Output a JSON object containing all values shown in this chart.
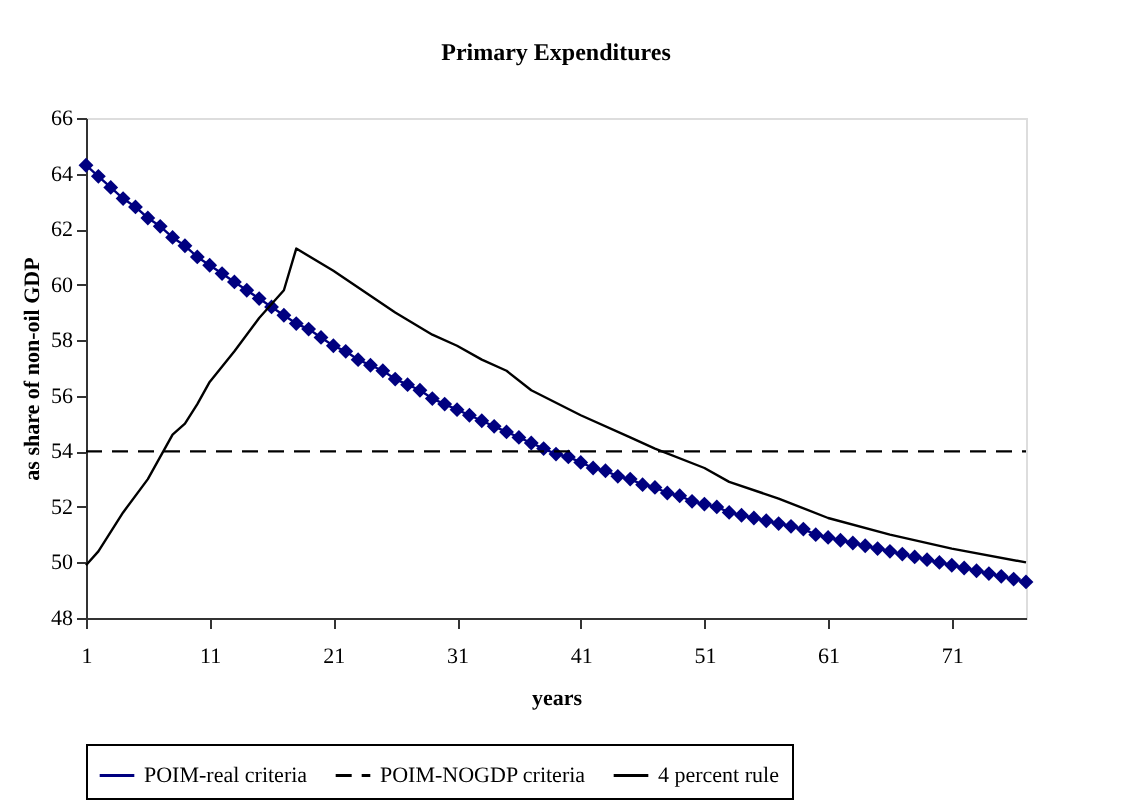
{
  "chart_data": {
    "type": "line",
    "title": "Primary Expenditures",
    "xlabel": "years",
    "ylabel": "as share of non-oil GDP",
    "xlim": [
      1,
      77
    ],
    "xticks": [
      1,
      11,
      21,
      31,
      41,
      51,
      61,
      71
    ],
    "ylim": [
      48,
      66
    ],
    "yticks": [
      48,
      50,
      52,
      54,
      56,
      58,
      60,
      62,
      64,
      66
    ],
    "grid": false,
    "legend": "bottom",
    "series": [
      {
        "name": "POIM-real criteria",
        "color": "#000080",
        "marker": "diamond",
        "line_style": "solid",
        "x": [
          1,
          2,
          3,
          4,
          5,
          6,
          7,
          8,
          9,
          10,
          11,
          12,
          13,
          14,
          15,
          16,
          17,
          18,
          19,
          20,
          21,
          22,
          23,
          24,
          25,
          26,
          27,
          28,
          29,
          30,
          31,
          32,
          33,
          34,
          35,
          36,
          37,
          38,
          39,
          40,
          41,
          42,
          43,
          44,
          45,
          46,
          47,
          48,
          49,
          50,
          51,
          52,
          53,
          54,
          55,
          56,
          57,
          58,
          59,
          60,
          61,
          62,
          63,
          64,
          65,
          66,
          67,
          68,
          69,
          70,
          71,
          72,
          73,
          74,
          75,
          76,
          77
        ],
        "values": [
          64.3,
          63.9,
          63.5,
          63.1,
          62.8,
          62.4,
          62.1,
          61.7,
          61.4,
          61.0,
          60.7,
          60.4,
          60.1,
          59.8,
          59.5,
          59.2,
          58.9,
          58.6,
          58.4,
          58.1,
          57.8,
          57.6,
          57.3,
          57.1,
          56.9,
          56.6,
          56.4,
          56.2,
          55.9,
          55.7,
          55.5,
          55.3,
          55.1,
          54.9,
          54.7,
          54.5,
          54.3,
          54.1,
          53.9,
          53.8,
          53.6,
          53.4,
          53.3,
          53.1,
          53.0,
          52.8,
          52.7,
          52.5,
          52.4,
          52.2,
          52.1,
          52.0,
          51.8,
          51.7,
          51.6,
          51.5,
          51.4,
          51.3,
          51.2,
          51.0,
          50.9,
          50.8,
          50.7,
          50.6,
          50.5,
          50.4,
          50.3,
          50.2,
          50.1,
          50.0,
          49.9,
          49.8,
          49.7,
          49.6,
          49.5,
          49.4,
          49.3
        ]
      },
      {
        "name": "POIM-NOGDP criteria",
        "color": "#000000",
        "marker": "none",
        "line_style": "dashed",
        "x": [
          1,
          77
        ],
        "values": [
          54,
          54
        ]
      },
      {
        "name": "4 percent rule",
        "color": "#000000",
        "marker": "none",
        "line_style": "solid",
        "x": [
          1,
          2,
          4,
          6,
          8,
          9,
          10,
          11,
          13,
          15,
          17,
          18,
          21,
          26,
          29,
          31,
          33,
          35,
          37,
          41,
          45,
          47,
          51,
          53,
          57,
          61,
          66,
          71,
          77
        ],
        "values": [
          49.9,
          50.4,
          51.8,
          53.0,
          54.6,
          55.0,
          55.7,
          56.5,
          57.6,
          58.8,
          59.8,
          61.3,
          60.5,
          59.0,
          58.2,
          57.8,
          57.3,
          56.9,
          56.2,
          55.3,
          54.5,
          54.1,
          53.4,
          52.9,
          52.3,
          51.6,
          51.0,
          50.5,
          50.0
        ]
      }
    ]
  }
}
